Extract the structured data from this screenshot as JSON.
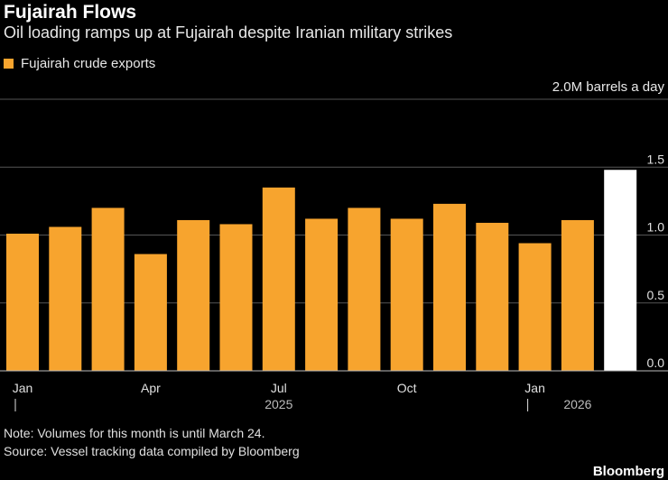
{
  "title": "Fujairah Flows",
  "subtitle": "Oil loading ramps up at Fujairah despite Iranian military strikes",
  "legend": {
    "label": "Fujairah crude exports",
    "color": "#f7a42e"
  },
  "unit_label": "2.0M barrels a day",
  "note": "Note: Volumes for this month is until March 24.",
  "source": "Source: Vessel tracking data compiled by Bloomberg",
  "brand": "Bloomberg",
  "colors": {
    "bar": "#f7a42e",
    "highlight": "#ffffff",
    "grid": "#555555",
    "axis_text": "#e0e0e0"
  },
  "chart_data": {
    "type": "bar",
    "title": "Fujairah Flows",
    "ylabel": "M barrels a day",
    "ylim": [
      0,
      2.0
    ],
    "y_ticks": [
      "0.0",
      "0.5",
      "1.0",
      "1.5"
    ],
    "y_tick_values": [
      0,
      0.5,
      1.0,
      1.5
    ],
    "categories": [
      "Jan 2025",
      "Feb 2025",
      "Mar 2025",
      "Apr 2025",
      "May 2025",
      "Jun 2025",
      "Jul 2025",
      "Aug 2025",
      "Sep 2025",
      "Oct 2025",
      "Nov 2025",
      "Dec 2025",
      "Jan 2026",
      "Feb 2026",
      "Mar 2026"
    ],
    "series": [
      {
        "name": "Fujairah crude exports",
        "values": [
          1.01,
          1.06,
          1.2,
          0.86,
          1.11,
          1.08,
          1.35,
          1.12,
          1.2,
          1.12,
          1.23,
          1.09,
          0.94,
          1.11,
          1.48
        ]
      }
    ],
    "highlight_index": 14,
    "x_tick_labels": [
      {
        "index": 0,
        "label": "Jan"
      },
      {
        "index": 3,
        "label": "Apr"
      },
      {
        "index": 6,
        "label": "Jul"
      },
      {
        "index": 9,
        "label": "Oct"
      },
      {
        "index": 12,
        "label": "Jan"
      }
    ],
    "year_labels": [
      {
        "index": 6,
        "label": "2025"
      },
      {
        "index": 13,
        "label": "2026"
      }
    ],
    "year_dividers": [
      0,
      12
    ]
  }
}
